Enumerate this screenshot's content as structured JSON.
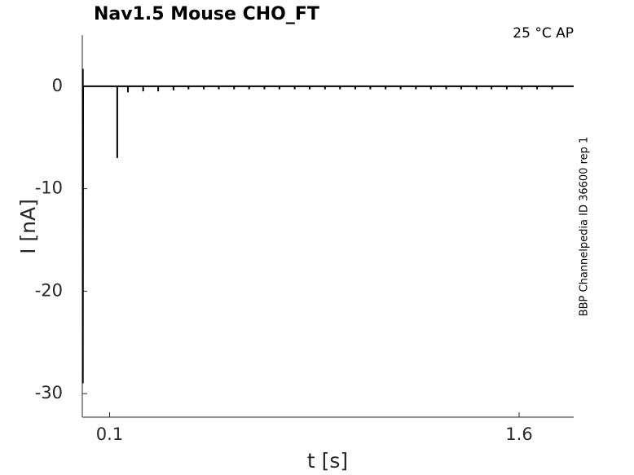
{
  "chart_data": {
    "type": "line",
    "title": "Nav1.5  Mouse  CHO_FT",
    "annotation": "25 °C  AP",
    "side_note": "BBP Channelpedia ID 36600 rep 1",
    "x_label": "t [s]",
    "y_label": "I [nA]",
    "color": "#000000",
    "xlim": [
      0,
      1.8
    ],
    "ylim": [
      -32.3,
      5
    ],
    "xticks": [
      0.1,
      1.6
    ],
    "yticks": [
      -30,
      -20,
      -10,
      0
    ],
    "x": [
      0.002,
      0.002,
      0.002,
      0.003,
      0.128,
      0.128,
      0.128,
      0.167,
      0.167,
      0.167,
      0.223,
      0.223,
      0.223,
      0.278,
      0.278,
      0.278,
      0.334,
      0.334,
      0.334,
      0.389,
      0.389,
      0.389,
      0.445,
      0.445,
      0.445,
      0.5,
      0.5,
      0.5,
      0.556,
      0.556,
      0.556,
      0.611,
      0.611,
      0.611,
      0.667,
      0.667,
      0.667,
      0.722,
      0.722,
      0.722,
      0.778,
      0.778,
      0.778,
      0.833,
      0.833,
      0.833,
      0.889,
      0.889,
      0.889,
      0.944,
      0.944,
      0.944,
      1.0,
      1.0,
      1.0,
      1.055,
      1.055,
      1.055,
      1.111,
      1.111,
      1.111,
      1.166,
      1.166,
      1.166,
      1.222,
      1.222,
      1.222,
      1.277,
      1.277,
      1.277,
      1.333,
      1.333,
      1.333,
      1.388,
      1.388,
      1.388,
      1.444,
      1.444,
      1.444,
      1.499,
      1.499,
      1.499,
      1.555,
      1.555,
      1.555,
      1.61,
      1.61,
      1.61,
      1.666,
      1.666,
      1.666,
      1.721,
      1.721,
      1.721,
      1.8
    ],
    "values": [
      0,
      1.7,
      -29,
      0,
      0,
      -7,
      0,
      0,
      -0.6,
      0,
      0,
      -0.5,
      0,
      0,
      -0.5,
      0,
      0,
      -0.4,
      0,
      0,
      -0.3,
      0,
      0,
      -0.3,
      0,
      0,
      -0.3,
      0,
      0,
      -0.3,
      0,
      0,
      -0.3,
      0,
      0,
      -0.3,
      0,
      0,
      -0.3,
      0,
      0,
      -0.3,
      0,
      0,
      -0.3,
      0,
      0,
      -0.3,
      0,
      0,
      -0.3,
      0,
      0,
      -0.3,
      0,
      0,
      -0.3,
      0,
      0,
      -0.3,
      0,
      0,
      -0.3,
      0,
      0,
      -0.3,
      0,
      0,
      -0.3,
      0,
      0,
      -0.3,
      0,
      0,
      -0.3,
      0,
      0,
      -0.3,
      0,
      0,
      -0.3,
      0,
      0,
      -0.3,
      0,
      0,
      -0.3,
      0,
      0,
      -0.3,
      0,
      0,
      -0.3,
      0,
      0
    ]
  }
}
